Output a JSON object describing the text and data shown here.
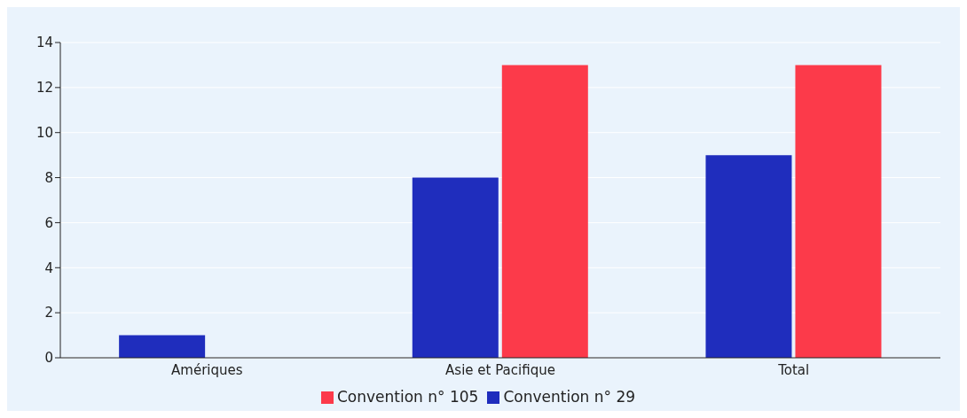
{
  "chart_data": {
    "type": "bar",
    "categories": [
      "Amériques",
      "Asie et Pacifique",
      "Total"
    ],
    "series": [
      {
        "name": "Convention n° 29",
        "color": "#1f2dbd",
        "values": [
          1,
          8,
          9
        ]
      },
      {
        "name": "Convention n° 105",
        "color": "#fc3a4a",
        "values": [
          null,
          13,
          13
        ]
      }
    ],
    "ylim": [
      0,
      14
    ],
    "yticks": [
      0,
      2,
      4,
      6,
      8,
      10,
      12,
      14
    ],
    "grid": "y",
    "legend": "bottom"
  }
}
